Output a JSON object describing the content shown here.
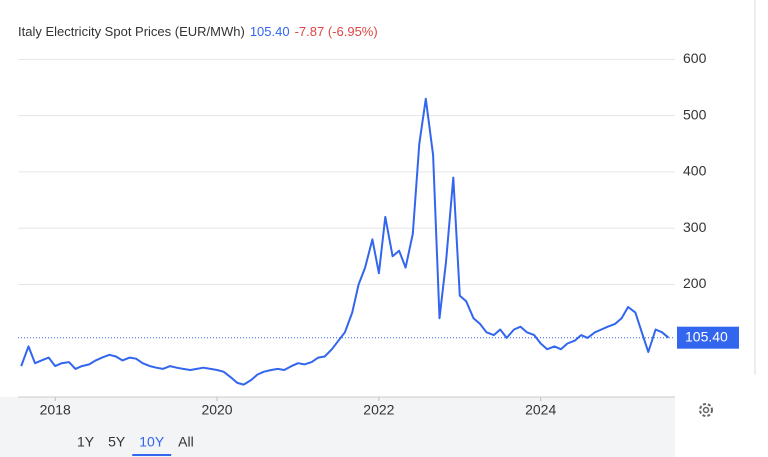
{
  "chart_data": {
    "type": "line",
    "title": "Italy Electricity Spot Prices (EUR/MWh)",
    "price": "105.40",
    "change": "-7.87 (-6.95%)",
    "color": "#3366ee",
    "last": {
      "value": 105.4,
      "label": "105.40"
    },
    "x": [
      2017.58,
      2017.67,
      2017.75,
      2017.83,
      2017.92,
      2018.0,
      2018.08,
      2018.17,
      2018.25,
      2018.33,
      2018.42,
      2018.5,
      2018.58,
      2018.67,
      2018.75,
      2018.83,
      2018.92,
      2019.0,
      2019.08,
      2019.17,
      2019.25,
      2019.33,
      2019.42,
      2019.5,
      2019.58,
      2019.67,
      2019.75,
      2019.83,
      2019.92,
      2020.0,
      2020.08,
      2020.17,
      2020.25,
      2020.33,
      2020.42,
      2020.5,
      2020.58,
      2020.67,
      2020.75,
      2020.83,
      2020.92,
      2021.0,
      2021.08,
      2021.17,
      2021.25,
      2021.33,
      2021.42,
      2021.5,
      2021.58,
      2021.67,
      2021.75,
      2021.83,
      2021.92,
      2022.0,
      2022.08,
      2022.17,
      2022.25,
      2022.33,
      2022.42,
      2022.5,
      2022.58,
      2022.67,
      2022.75,
      2022.83,
      2022.92,
      2023.0,
      2023.08,
      2023.17,
      2023.25,
      2023.33,
      2023.42,
      2023.5,
      2023.58,
      2023.67,
      2023.75,
      2023.83,
      2023.92,
      2024.0,
      2024.08,
      2024.17,
      2024.25,
      2024.33,
      2024.42,
      2024.5,
      2024.58,
      2024.67,
      2024.75,
      2024.83,
      2024.92,
      2025.0,
      2025.08,
      2025.17,
      2025.25,
      2025.33,
      2025.42,
      2025.5,
      2025.58
    ],
    "values": [
      55,
      90,
      60,
      65,
      70,
      55,
      60,
      62,
      50,
      55,
      58,
      65,
      70,
      75,
      72,
      65,
      70,
      68,
      60,
      55,
      52,
      50,
      55,
      52,
      50,
      48,
      50,
      52,
      50,
      48,
      45,
      35,
      25,
      22,
      30,
      40,
      45,
      48,
      50,
      48,
      55,
      60,
      58,
      62,
      70,
      72,
      85,
      100,
      115,
      150,
      200,
      230,
      280,
      220,
      320,
      250,
      260,
      230,
      290,
      450,
      530,
      430,
      140,
      240,
      390,
      180,
      170,
      140,
      130,
      115,
      110,
      120,
      105,
      120,
      125,
      115,
      110,
      95,
      85,
      90,
      85,
      95,
      100,
      110,
      105,
      115,
      120,
      125,
      130,
      140,
      160,
      150,
      115,
      80,
      120,
      115,
      105.4
    ],
    "xlim": [
      2017.54,
      2025.66
    ],
    "xticks": [
      2018,
      2020,
      2022,
      2024
    ],
    "ylim": [
      0,
      670
    ],
    "yticks": [
      200,
      300,
      400,
      500,
      600
    ],
    "grid": true,
    "ranges": [
      "1Y",
      "5Y",
      "10Y",
      "All"
    ],
    "active_range": "10Y"
  }
}
